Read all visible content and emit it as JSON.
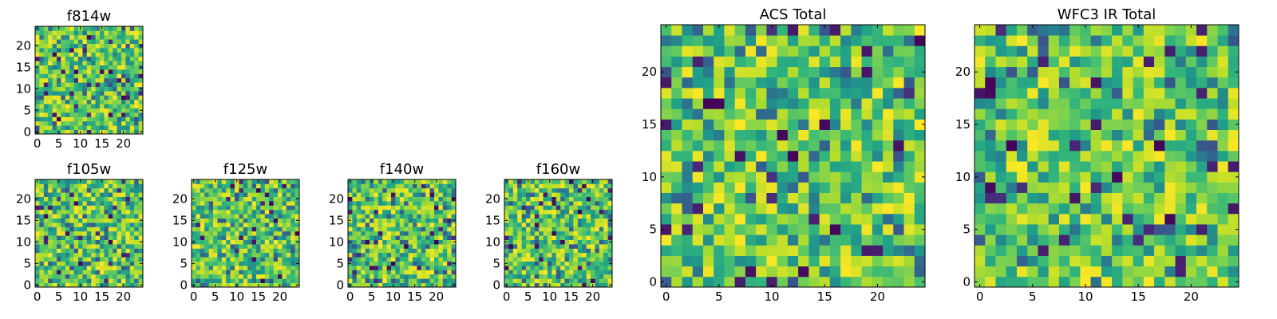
{
  "figure": {
    "description": "Grid of seven 25x25 pixel noise images"
  },
  "chart_data": [
    {
      "type": "heatmap",
      "title": "f814w",
      "xlim": [
        0,
        25
      ],
      "ylim": [
        0,
        25
      ],
      "xticks": [
        0,
        5,
        10,
        15,
        20
      ],
      "yticks": [
        0,
        5,
        10,
        15,
        20
      ],
      "tick_labels": [
        "0",
        "5",
        "10",
        "15",
        "20"
      ],
      "grid": false,
      "colormap": "viridis",
      "seed": 814
    },
    {
      "type": "heatmap",
      "title": "f105w",
      "xlim": [
        0,
        25
      ],
      "ylim": [
        0,
        25
      ],
      "xticks": [
        0,
        5,
        10,
        15,
        20
      ],
      "yticks": [
        0,
        5,
        10,
        15,
        20
      ],
      "tick_labels": [
        "0",
        "5",
        "10",
        "15",
        "20"
      ],
      "grid": false,
      "colormap": "viridis",
      "seed": 105
    },
    {
      "type": "heatmap",
      "title": "f125w",
      "xlim": [
        0,
        25
      ],
      "ylim": [
        0,
        25
      ],
      "xticks": [
        0,
        5,
        10,
        15,
        20
      ],
      "yticks": [
        0,
        5,
        10,
        15,
        20
      ],
      "tick_labels": [
        "0",
        "5",
        "10",
        "15",
        "20"
      ],
      "grid": false,
      "colormap": "viridis",
      "seed": 125
    },
    {
      "type": "heatmap",
      "title": "f140w",
      "xlim": [
        0,
        25
      ],
      "ylim": [
        0,
        25
      ],
      "xticks": [
        0,
        5,
        10,
        15,
        20
      ],
      "yticks": [
        0,
        5,
        10,
        15,
        20
      ],
      "tick_labels": [
        "0",
        "5",
        "10",
        "15",
        "20"
      ],
      "grid": false,
      "colormap": "viridis",
      "seed": 140
    },
    {
      "type": "heatmap",
      "title": "f160w",
      "xlim": [
        0,
        25
      ],
      "ylim": [
        0,
        25
      ],
      "xticks": [
        0,
        5,
        10,
        15,
        20
      ],
      "yticks": [
        0,
        5,
        10,
        15,
        20
      ],
      "tick_labels": [
        "0",
        "5",
        "10",
        "15",
        "20"
      ],
      "grid": false,
      "colormap": "viridis",
      "seed": 160
    },
    {
      "type": "heatmap",
      "title": "ACS Total",
      "xlim": [
        0,
        25
      ],
      "ylim": [
        0,
        25
      ],
      "xticks": [
        0,
        5,
        10,
        15,
        20
      ],
      "yticks": [
        0,
        5,
        10,
        15,
        20
      ],
      "tick_labels": [
        "0",
        "5",
        "10",
        "15",
        "20"
      ],
      "grid": false,
      "colormap": "viridis",
      "seed": 1001
    },
    {
      "type": "heatmap",
      "title": "WFC3 IR Total",
      "xlim": [
        0,
        25
      ],
      "ylim": [
        0,
        25
      ],
      "xticks": [
        0,
        5,
        10,
        15,
        20
      ],
      "yticks": [
        0,
        5,
        10,
        15,
        20
      ],
      "tick_labels": [
        "0",
        "5",
        "10",
        "15",
        "20"
      ],
      "grid": false,
      "colormap": "viridis",
      "seed": 1002
    }
  ]
}
